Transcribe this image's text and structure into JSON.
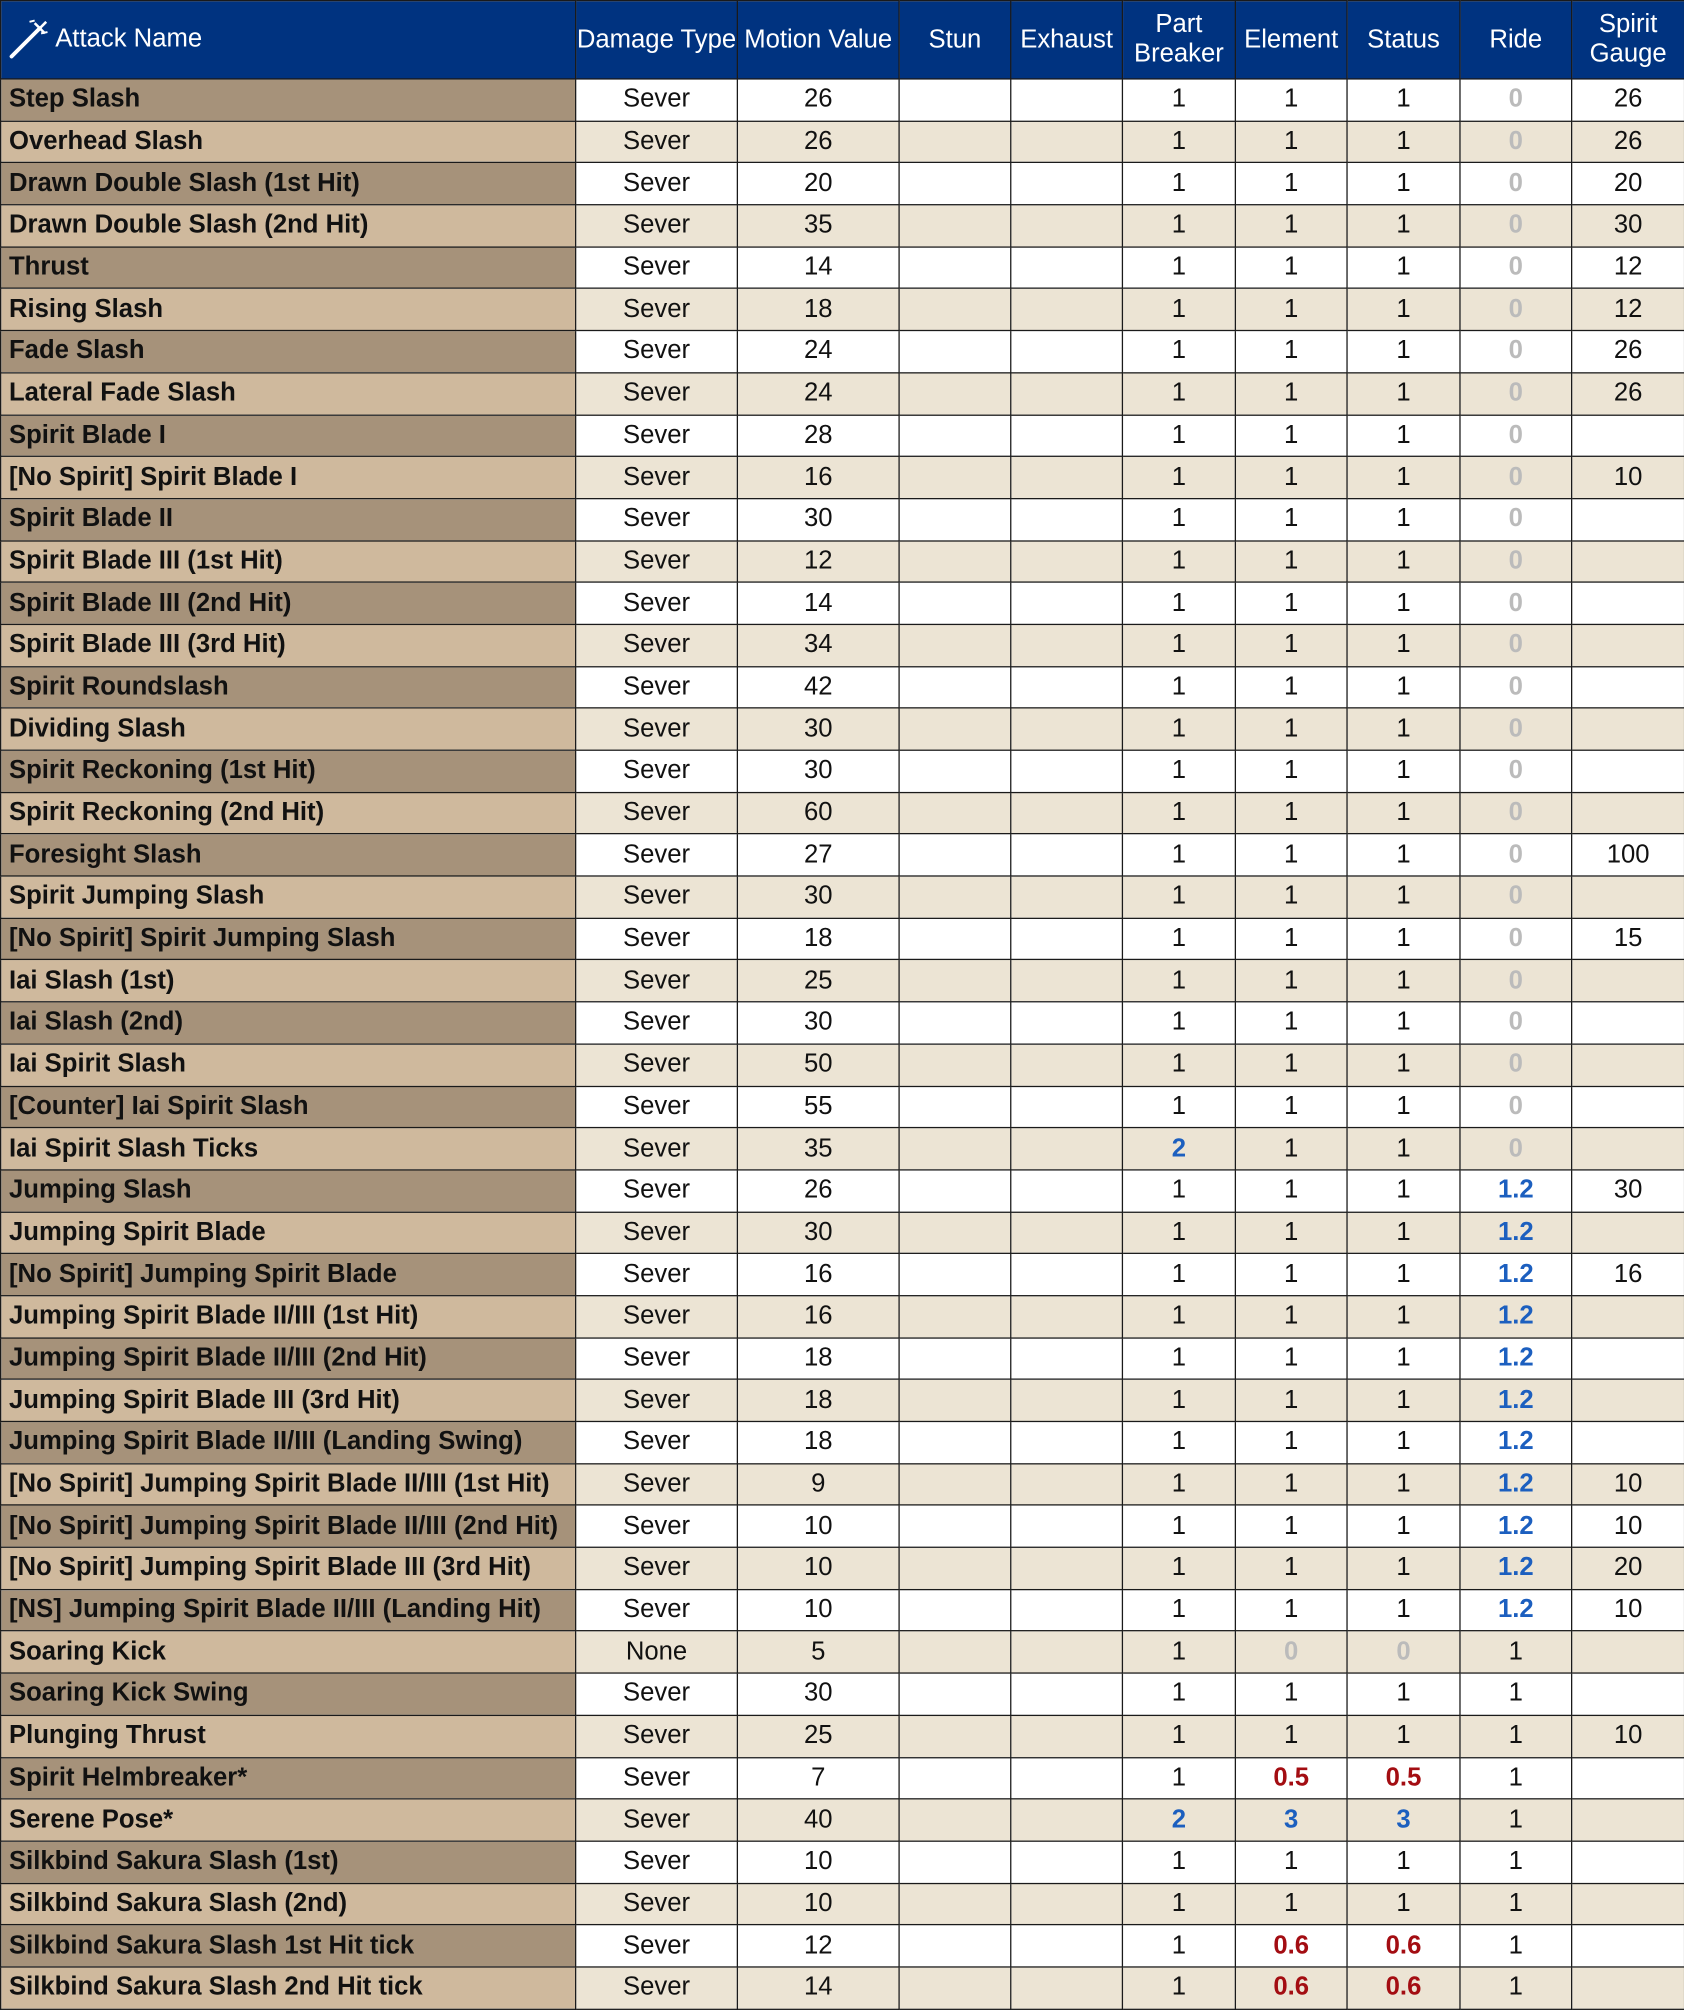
{
  "colors": {
    "header_bg": "#003380",
    "blue": "#1c5fbf",
    "red": "#a30d12",
    "gray": "#bbbbbb"
  },
  "header": {
    "icon": "sword-icon",
    "columns": [
      "Attack Name",
      "Damage Type",
      "Motion Value",
      "Stun",
      "Exhaust",
      "Part Breaker",
      "Element",
      "Status",
      "Ride",
      "Spirit Gauge"
    ]
  },
  "chart_data": {
    "type": "table",
    "columns": [
      "Attack Name",
      "Damage Type",
      "Motion Value",
      "Stun",
      "Exhaust",
      "Part Breaker",
      "Element",
      "Status",
      "Ride",
      "Spirit Gauge"
    ],
    "rows": [
      [
        "Step Slash",
        "Sever",
        "26",
        "",
        "",
        "1",
        "1",
        "1",
        "0",
        "26"
      ],
      [
        "Overhead Slash",
        "Sever",
        "26",
        "",
        "",
        "1",
        "1",
        "1",
        "0",
        "26"
      ],
      [
        "Drawn Double Slash (1st Hit)",
        "Sever",
        "20",
        "",
        "",
        "1",
        "1",
        "1",
        "0",
        "20"
      ],
      [
        "Drawn Double Slash (2nd Hit)",
        "Sever",
        "35",
        "",
        "",
        "1",
        "1",
        "1",
        "0",
        "30"
      ],
      [
        "Thrust",
        "Sever",
        "14",
        "",
        "",
        "1",
        "1",
        "1",
        "0",
        "12"
      ],
      [
        "Rising Slash",
        "Sever",
        "18",
        "",
        "",
        "1",
        "1",
        "1",
        "0",
        "12"
      ],
      [
        "Fade Slash",
        "Sever",
        "24",
        "",
        "",
        "1",
        "1",
        "1",
        "0",
        "26"
      ],
      [
        "Lateral Fade Slash",
        "Sever",
        "24",
        "",
        "",
        "1",
        "1",
        "1",
        "0",
        "26"
      ],
      [
        "Spirit Blade I",
        "Sever",
        "28",
        "",
        "",
        "1",
        "1",
        "1",
        "0",
        ""
      ],
      [
        "[No Spirit] Spirit Blade I",
        "Sever",
        "16",
        "",
        "",
        "1",
        "1",
        "1",
        "0",
        "10"
      ],
      [
        "Spirit Blade II",
        "Sever",
        "30",
        "",
        "",
        "1",
        "1",
        "1",
        "0",
        ""
      ],
      [
        "Spirit Blade III (1st Hit)",
        "Sever",
        "12",
        "",
        "",
        "1",
        "1",
        "1",
        "0",
        ""
      ],
      [
        "Spirit Blade III (2nd Hit)",
        "Sever",
        "14",
        "",
        "",
        "1",
        "1",
        "1",
        "0",
        ""
      ],
      [
        "Spirit Blade III (3rd Hit)",
        "Sever",
        "34",
        "",
        "",
        "1",
        "1",
        "1",
        "0",
        ""
      ],
      [
        "Spirit Roundslash",
        "Sever",
        "42",
        "",
        "",
        "1",
        "1",
        "1",
        "0",
        ""
      ],
      [
        "Dividing Slash",
        "Sever",
        "30",
        "",
        "",
        "1",
        "1",
        "1",
        "0",
        ""
      ],
      [
        "Spirit Reckoning (1st Hit)",
        "Sever",
        "30",
        "",
        "",
        "1",
        "1",
        "1",
        "0",
        ""
      ],
      [
        "Spirit Reckoning (2nd Hit)",
        "Sever",
        "60",
        "",
        "",
        "1",
        "1",
        "1",
        "0",
        ""
      ],
      [
        "Foresight Slash",
        "Sever",
        "27",
        "",
        "",
        "1",
        "1",
        "1",
        "0",
        "100"
      ],
      [
        "Spirit Jumping Slash",
        "Sever",
        "30",
        "",
        "",
        "1",
        "1",
        "1",
        "0",
        ""
      ],
      [
        "[No Spirit] Spirit Jumping Slash",
        "Sever",
        "18",
        "",
        "",
        "1",
        "1",
        "1",
        "0",
        "15"
      ],
      [
        "Iai Slash (1st)",
        "Sever",
        "25",
        "",
        "",
        "1",
        "1",
        "1",
        "0",
        ""
      ],
      [
        "Iai Slash (2nd)",
        "Sever",
        "30",
        "",
        "",
        "1",
        "1",
        "1",
        "0",
        ""
      ],
      [
        "Iai Spirit Slash",
        "Sever",
        "50",
        "",
        "",
        "1",
        "1",
        "1",
        "0",
        ""
      ],
      [
        "[Counter] Iai Spirit Slash",
        "Sever",
        "55",
        "",
        "",
        "1",
        "1",
        "1",
        "0",
        ""
      ],
      [
        "Iai Spirit Slash Ticks",
        "Sever",
        "35",
        "",
        "",
        "2",
        "1",
        "1",
        "0",
        ""
      ],
      [
        "Jumping Slash",
        "Sever",
        "26",
        "",
        "",
        "1",
        "1",
        "1",
        "1.2",
        "30"
      ],
      [
        "Jumping Spirit Blade",
        "Sever",
        "30",
        "",
        "",
        "1",
        "1",
        "1",
        "1.2",
        ""
      ],
      [
        "[No Spirit] Jumping Spirit Blade",
        "Sever",
        "16",
        "",
        "",
        "1",
        "1",
        "1",
        "1.2",
        "16"
      ],
      [
        "Jumping Spirit Blade II/III (1st Hit)",
        "Sever",
        "16",
        "",
        "",
        "1",
        "1",
        "1",
        "1.2",
        ""
      ],
      [
        "Jumping Spirit Blade II/III (2nd Hit)",
        "Sever",
        "18",
        "",
        "",
        "1",
        "1",
        "1",
        "1.2",
        ""
      ],
      [
        "Jumping Spirit Blade III (3rd Hit)",
        "Sever",
        "18",
        "",
        "",
        "1",
        "1",
        "1",
        "1.2",
        ""
      ],
      [
        "Jumping Spirit Blade II/III (Landing Swing)",
        "Sever",
        "18",
        "",
        "",
        "1",
        "1",
        "1",
        "1.2",
        ""
      ],
      [
        "[No Spirit] Jumping Spirit Blade II/III (1st Hit)",
        "Sever",
        "9",
        "",
        "",
        "1",
        "1",
        "1",
        "1.2",
        "10"
      ],
      [
        "[No Spirit] Jumping Spirit Blade II/III (2nd Hit)",
        "Sever",
        "10",
        "",
        "",
        "1",
        "1",
        "1",
        "1.2",
        "10"
      ],
      [
        "[No Spirit] Jumping Spirit Blade III (3rd Hit)",
        "Sever",
        "10",
        "",
        "",
        "1",
        "1",
        "1",
        "1.2",
        "20"
      ],
      [
        "[NS] Jumping Spirit Blade II/III (Landing Hit)",
        "Sever",
        "10",
        "",
        "",
        "1",
        "1",
        "1",
        "1.2",
        "10"
      ],
      [
        "Soaring Kick",
        "None",
        "5",
        "",
        "",
        "1",
        "0",
        "0",
        "1",
        ""
      ],
      [
        "Soaring Kick Swing",
        "Sever",
        "30",
        "",
        "",
        "1",
        "1",
        "1",
        "1",
        ""
      ],
      [
        "Plunging Thrust",
        "Sever",
        "25",
        "",
        "",
        "1",
        "1",
        "1",
        "1",
        "10"
      ],
      [
        "Spirit Helmbreaker*",
        "Sever",
        "7",
        "",
        "",
        "1",
        "0.5",
        "0.5",
        "1",
        ""
      ],
      [
        "Serene Pose*",
        "Sever",
        "40",
        "",
        "",
        "2",
        "3",
        "3",
        "1",
        ""
      ],
      [
        "Silkbind Sakura Slash (1st)",
        "Sever",
        "10",
        "",
        "",
        "1",
        "1",
        "1",
        "1",
        ""
      ],
      [
        "Silkbind Sakura Slash (2nd)",
        "Sever",
        "10",
        "",
        "",
        "1",
        "1",
        "1",
        "1",
        ""
      ],
      [
        "Silkbind Sakura Slash 1st Hit tick",
        "Sever",
        "12",
        "",
        "",
        "1",
        "0.6",
        "0.6",
        "1",
        ""
      ],
      [
        "Silkbind Sakura Slash 2nd Hit tick",
        "Sever",
        "14",
        "",
        "",
        "1",
        "0.6",
        "0.6",
        "1",
        ""
      ]
    ]
  }
}
